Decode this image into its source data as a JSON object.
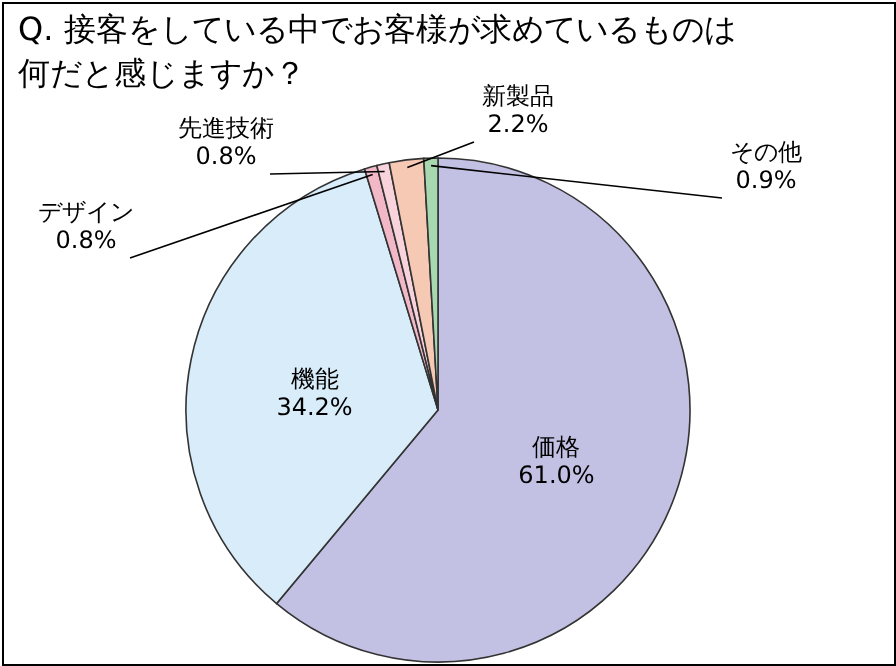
{
  "chart_data": {
    "type": "pie",
    "title": "Q. 接客をしている中でお客様が求めているものは何だと感じますか？",
    "categories": [
      "価格",
      "機能",
      "デザイン",
      "先進技術",
      "新製品",
      "その他"
    ],
    "values": [
      61.0,
      34.2,
      0.8,
      0.8,
      2.2,
      0.9
    ],
    "value_labels": [
      "61.0%",
      "34.2%",
      "0.8%",
      "0.8%",
      "2.2%",
      "0.9%"
    ],
    "colors": [
      "#c3c1e3",
      "#d8ecfa",
      "#f2b8c8",
      "#f9d3dc",
      "#f6c9b4",
      "#a8d8b0"
    ]
  }
}
